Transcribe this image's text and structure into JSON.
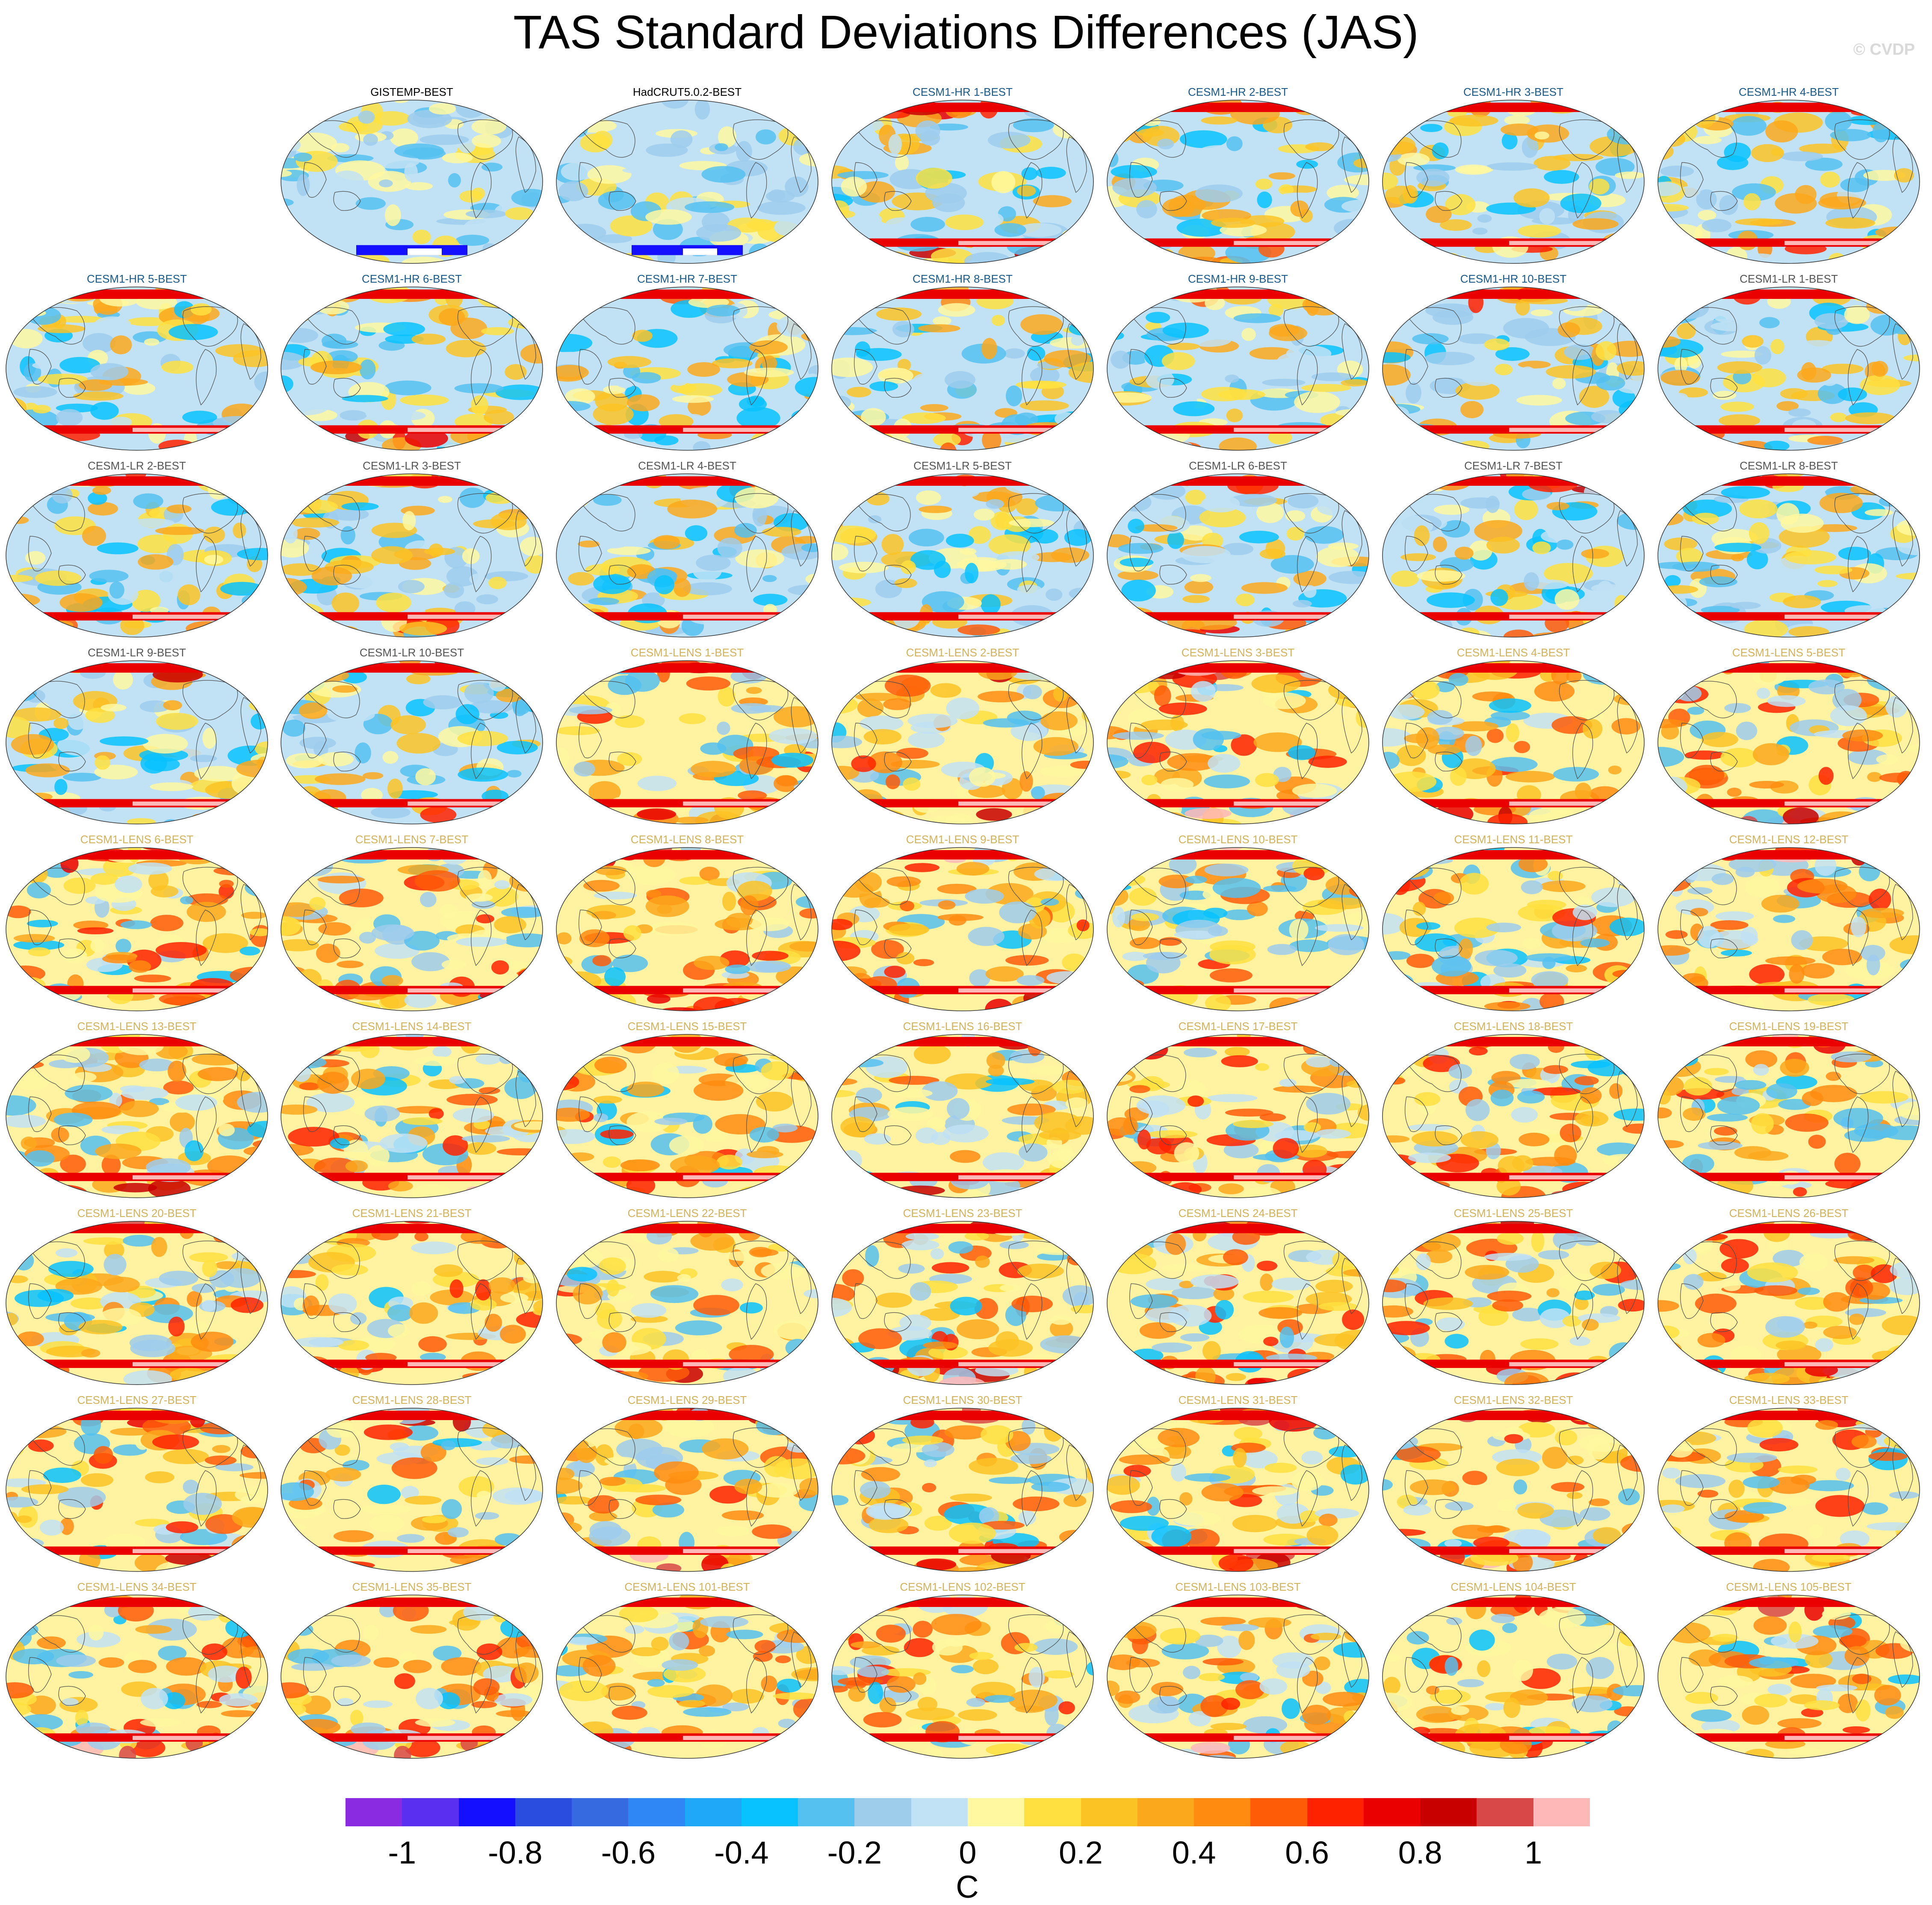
{
  "title": "TAS Standard Deviations Differences (JAS)",
  "credit": "© CVDP",
  "chart_data": {
    "type": "heatmap",
    "title": "TAS Standard Deviations Differences (JAS)",
    "units": "C",
    "projection": "Robinson (global maps)",
    "colorbar": {
      "tick_labels": [
        "-1",
        "-0.8",
        "-0.6",
        "-0.4",
        "-0.2",
        "0",
        "0.2",
        "0.4",
        "0.6",
        "0.8",
        "1"
      ],
      "tick_values": [
        -1,
        -0.8,
        -0.6,
        -0.4,
        -0.2,
        0,
        0.2,
        0.4,
        0.6,
        0.8,
        1
      ],
      "levels": [
        -1.1,
        -1.0,
        -0.9,
        -0.8,
        -0.7,
        -0.6,
        -0.5,
        -0.4,
        -0.3,
        -0.2,
        -0.1,
        0,
        0.1,
        0.2,
        0.3,
        0.4,
        0.5,
        0.6,
        0.7,
        0.8,
        0.9,
        1.0,
        1.1
      ],
      "colors": [
        "#8a2be2",
        "#5a2ff0",
        "#1410ff",
        "#2a4de0",
        "#356ae0",
        "#2f86f5",
        "#20a8f8",
        "#08c2ff",
        "#55c1f0",
        "#9ecdec",
        "#c1e2f4",
        "#fff8a0",
        "#ffe040",
        "#fcc324",
        "#fca81c",
        "#ff8c10",
        "#ff5c08",
        "#ff2200",
        "#ea0000",
        "#c80000",
        "#d84848",
        "#ffb8b8"
      ]
    },
    "panels": [
      {
        "label": "GISTEMP-BEST",
        "group": "obs",
        "color": "#000000"
      },
      {
        "label": "HadCRUT5.0.2-BEST",
        "group": "obs",
        "color": "#000000"
      },
      {
        "label": "CESM1-HR 1-BEST",
        "group": "hr",
        "color": "#1a5a8a"
      },
      {
        "label": "CESM1-HR 2-BEST",
        "group": "hr",
        "color": "#1a5a8a"
      },
      {
        "label": "CESM1-HR 3-BEST",
        "group": "hr",
        "color": "#1a5a8a"
      },
      {
        "label": "CESM1-HR 4-BEST",
        "group": "hr",
        "color": "#1a5a8a"
      },
      {
        "label": "CESM1-HR 5-BEST",
        "group": "hr",
        "color": "#1a5a8a"
      },
      {
        "label": "CESM1-HR 6-BEST",
        "group": "hr",
        "color": "#1a5a8a"
      },
      {
        "label": "CESM1-HR 7-BEST",
        "group": "hr",
        "color": "#1a5a8a"
      },
      {
        "label": "CESM1-HR 8-BEST",
        "group": "hr",
        "color": "#1a5a8a"
      },
      {
        "label": "CESM1-HR 9-BEST",
        "group": "hr",
        "color": "#1a5a8a"
      },
      {
        "label": "CESM1-HR 10-BEST",
        "group": "hr",
        "color": "#1a5a8a"
      },
      {
        "label": "CESM1-LR 1-BEST",
        "group": "lr",
        "color": "#555555"
      },
      {
        "label": "CESM1-LR 2-BEST",
        "group": "lr",
        "color": "#555555"
      },
      {
        "label": "CESM1-LR 3-BEST",
        "group": "lr",
        "color": "#555555"
      },
      {
        "label": "CESM1-LR 4-BEST",
        "group": "lr",
        "color": "#555555"
      },
      {
        "label": "CESM1-LR 5-BEST",
        "group": "lr",
        "color": "#555555"
      },
      {
        "label": "CESM1-LR 6-BEST",
        "group": "lr",
        "color": "#555555"
      },
      {
        "label": "CESM1-LR 7-BEST",
        "group": "lr",
        "color": "#555555"
      },
      {
        "label": "CESM1-LR 8-BEST",
        "group": "lr",
        "color": "#555555"
      },
      {
        "label": "CESM1-LR 9-BEST",
        "group": "lr",
        "color": "#555555"
      },
      {
        "label": "CESM1-LR 10-BEST",
        "group": "lr",
        "color": "#555555"
      },
      {
        "label": "CESM1-LENS 1-BEST",
        "group": "lens",
        "color": "#d2b25a"
      },
      {
        "label": "CESM1-LENS 2-BEST",
        "group": "lens",
        "color": "#d2b25a"
      },
      {
        "label": "CESM1-LENS 3-BEST",
        "group": "lens",
        "color": "#d2b25a"
      },
      {
        "label": "CESM1-LENS 4-BEST",
        "group": "lens",
        "color": "#d2b25a"
      },
      {
        "label": "CESM1-LENS 5-BEST",
        "group": "lens",
        "color": "#d2b25a"
      },
      {
        "label": "CESM1-LENS 6-BEST",
        "group": "lens",
        "color": "#d2b25a"
      },
      {
        "label": "CESM1-LENS 7-BEST",
        "group": "lens",
        "color": "#d2b25a"
      },
      {
        "label": "CESM1-LENS 8-BEST",
        "group": "lens",
        "color": "#d2b25a"
      },
      {
        "label": "CESM1-LENS 9-BEST",
        "group": "lens",
        "color": "#d2b25a"
      },
      {
        "label": "CESM1-LENS 10-BEST",
        "group": "lens",
        "color": "#d2b25a"
      },
      {
        "label": "CESM1-LENS 11-BEST",
        "group": "lens",
        "color": "#d2b25a"
      },
      {
        "label": "CESM1-LENS 12-BEST",
        "group": "lens",
        "color": "#d2b25a"
      },
      {
        "label": "CESM1-LENS 13-BEST",
        "group": "lens",
        "color": "#d2b25a"
      },
      {
        "label": "CESM1-LENS 14-BEST",
        "group": "lens",
        "color": "#d2b25a"
      },
      {
        "label": "CESM1-LENS 15-BEST",
        "group": "lens",
        "color": "#d2b25a"
      },
      {
        "label": "CESM1-LENS 16-BEST",
        "group": "lens",
        "color": "#d2b25a"
      },
      {
        "label": "CESM1-LENS 17-BEST",
        "group": "lens",
        "color": "#d2b25a"
      },
      {
        "label": "CESM1-LENS 18-BEST",
        "group": "lens",
        "color": "#d2b25a"
      },
      {
        "label": "CESM1-LENS 19-BEST",
        "group": "lens",
        "color": "#d2b25a"
      },
      {
        "label": "CESM1-LENS 20-BEST",
        "group": "lens",
        "color": "#d2b25a"
      },
      {
        "label": "CESM1-LENS 21-BEST",
        "group": "lens",
        "color": "#d2b25a"
      },
      {
        "label": "CESM1-LENS 22-BEST",
        "group": "lens",
        "color": "#d2b25a"
      },
      {
        "label": "CESM1-LENS 23-BEST",
        "group": "lens",
        "color": "#d2b25a"
      },
      {
        "label": "CESM1-LENS 24-BEST",
        "group": "lens",
        "color": "#d2b25a"
      },
      {
        "label": "CESM1-LENS 25-BEST",
        "group": "lens",
        "color": "#d2b25a"
      },
      {
        "label": "CESM1-LENS 26-BEST",
        "group": "lens",
        "color": "#d2b25a"
      },
      {
        "label": "CESM1-LENS 27-BEST",
        "group": "lens",
        "color": "#d2b25a"
      },
      {
        "label": "CESM1-LENS 28-BEST",
        "group": "lens",
        "color": "#d2b25a"
      },
      {
        "label": "CESM1-LENS 29-BEST",
        "group": "lens",
        "color": "#d2b25a"
      },
      {
        "label": "CESM1-LENS 30-BEST",
        "group": "lens",
        "color": "#d2b25a"
      },
      {
        "label": "CESM1-LENS 31-BEST",
        "group": "lens",
        "color": "#d2b25a"
      },
      {
        "label": "CESM1-LENS 32-BEST",
        "group": "lens",
        "color": "#d2b25a"
      },
      {
        "label": "CESM1-LENS 33-BEST",
        "group": "lens",
        "color": "#d2b25a"
      },
      {
        "label": "CESM1-LENS 34-BEST",
        "group": "lens",
        "color": "#d2b25a"
      },
      {
        "label": "CESM1-LENS 35-BEST",
        "group": "lens",
        "color": "#d2b25a"
      },
      {
        "label": "CESM1-LENS 101-BEST",
        "group": "lens",
        "color": "#d2b25a"
      },
      {
        "label": "CESM1-LENS 102-BEST",
        "group": "lens",
        "color": "#d2b25a"
      },
      {
        "label": "CESM1-LENS 103-BEST",
        "group": "lens",
        "color": "#d2b25a"
      },
      {
        "label": "CESM1-LENS 104-BEST",
        "group": "lens",
        "color": "#d2b25a"
      },
      {
        "label": "CESM1-LENS 105-BEST",
        "group": "lens",
        "color": "#d2b25a"
      }
    ]
  }
}
